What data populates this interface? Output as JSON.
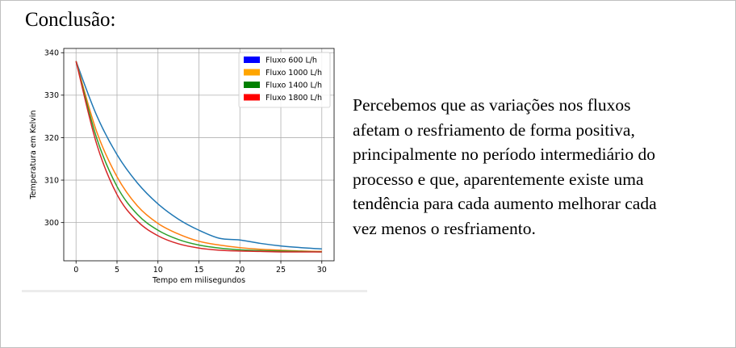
{
  "slide": {
    "title": "Conclusão:",
    "conclusion_lines": [
      "Percebemos que as variações nos fluxos",
      "afetam o resfriamento de forma positiva,",
      "principalmente no período intermediário do",
      "processo e que, aparentemente existe uma",
      "tendência para cada aumento melhorar cada",
      "vez menos o resfriamento."
    ]
  },
  "chart_data": {
    "type": "line",
    "title": "",
    "xlabel": "Tempo em milisegundos",
    "ylabel": "Temperatura em Kelvin",
    "xlim": [
      -1.5,
      31.5
    ],
    "ylim": [
      291,
      341
    ],
    "xticks": [
      0,
      5,
      10,
      15,
      20,
      25,
      30
    ],
    "yticks": [
      300,
      310,
      320,
      330,
      340
    ],
    "grid": true,
    "legend_position": "top-right",
    "x": [
      0,
      2.5,
      5,
      7.5,
      10,
      12.5,
      15,
      17.5,
      20,
      22.5,
      25,
      27.5,
      30
    ],
    "series": [
      {
        "name": "Fluxo 600 L/h",
        "legend_color": "#0000ff",
        "line_color": "#1f77b4",
        "values": [
          338,
          325.3,
          316.0,
          309.3,
          304.4,
          300.8,
          298.2,
          296.3,
          295.9,
          295.1,
          294.5,
          294.1,
          293.8
        ]
      },
      {
        "name": "Fluxo 1000 L/h",
        "legend_color": "#ffa500",
        "line_color": "#ff7f0e",
        "values": [
          338,
          321.5,
          310.8,
          303.9,
          299.8,
          297.3,
          295.6,
          294.7,
          294.1,
          293.7,
          293.5,
          293.3,
          293.2
        ]
      },
      {
        "name": "Fluxo 1400 L/h",
        "legend_color": "#008000",
        "line_color": "#2ca02c",
        "values": [
          338,
          320.0,
          308.5,
          301.9,
          298.2,
          296.0,
          294.7,
          294.0,
          293.6,
          293.4,
          293.3,
          293.2,
          293.1
        ]
      },
      {
        "name": "Fluxo 1800 L/h",
        "legend_color": "#ff0000",
        "line_color": "#d62728",
        "values": [
          338,
          318.6,
          306.6,
          300.3,
          296.9,
          295.0,
          294.0,
          293.5,
          293.3,
          293.2,
          293.1,
          293.1,
          293.1
        ]
      }
    ]
  }
}
